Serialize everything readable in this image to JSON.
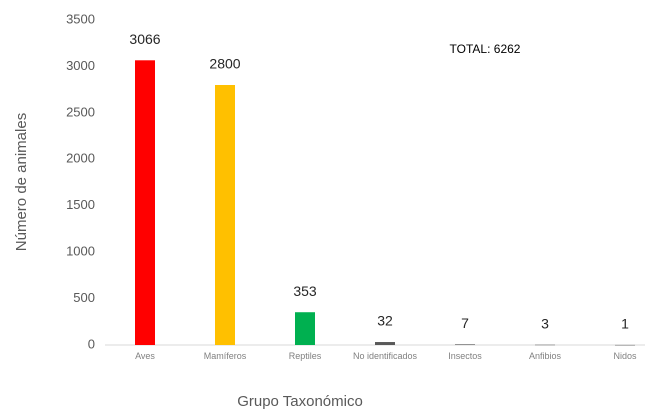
{
  "chart_data": {
    "type": "bar",
    "x_label": "Grupo Taxonómico",
    "y_label": "Número de animales",
    "annotation": "TOTAL: 6262",
    "categories": [
      "Aves",
      "Mamíferos",
      "Reptiles",
      "No identificados",
      "Insectos",
      "Anfibios",
      "Nidos"
    ],
    "values": [
      3066,
      2800,
      353,
      32,
      7,
      3,
      1
    ],
    "colors": [
      "#ff0000",
      "#ffc000",
      "#00b050",
      "#595959",
      "#595959",
      "#595959",
      "#595959"
    ],
    "ylim": [
      0,
      3500
    ],
    "yticks": [
      0,
      500,
      1000,
      1500,
      2000,
      2500,
      3000,
      3500
    ],
    "grid": false
  }
}
